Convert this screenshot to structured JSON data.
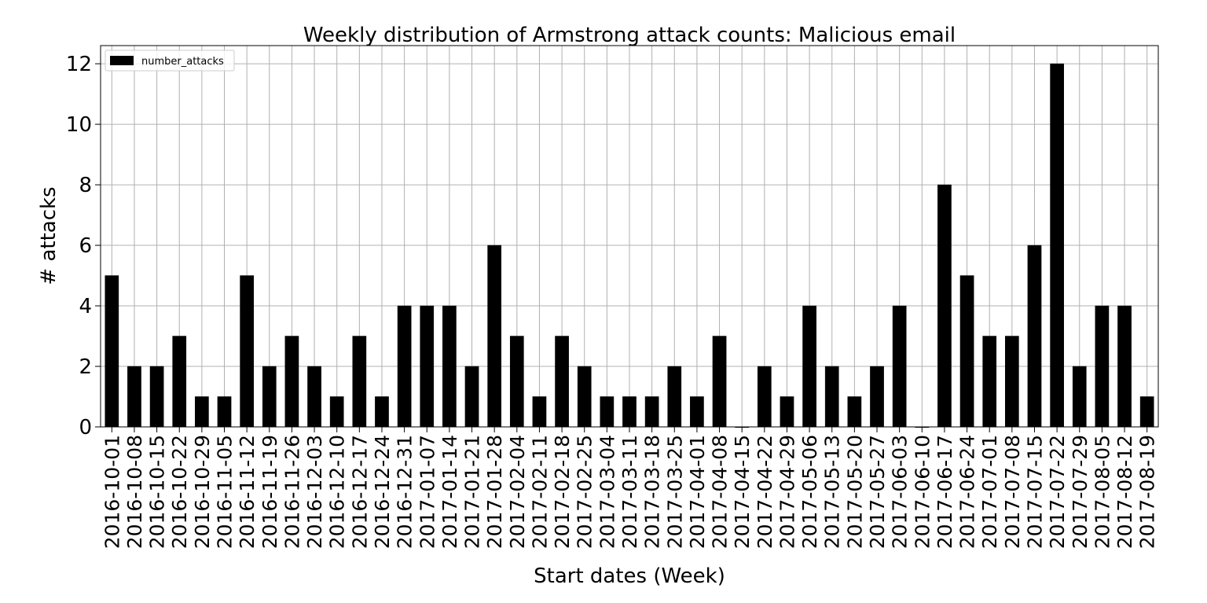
{
  "chart_data": {
    "type": "bar",
    "title": "Weekly distribution of Armstrong attack counts: Malicious email",
    "xlabel": "Start dates (Week)",
    "ylabel": "# attacks",
    "ylim": [
      0,
      12.6
    ],
    "yticks": [
      0,
      2,
      4,
      6,
      8,
      10,
      12
    ],
    "grid": true,
    "legend_position": "top-left",
    "bar_color": "#000000",
    "grid_color": "#b0b0b0",
    "categories": [
      "2016-10-01",
      "2016-10-08",
      "2016-10-15",
      "2016-10-22",
      "2016-10-29",
      "2016-11-05",
      "2016-11-12",
      "2016-11-19",
      "2016-11-26",
      "2016-12-03",
      "2016-12-10",
      "2016-12-17",
      "2016-12-24",
      "2016-12-31",
      "2017-01-07",
      "2017-01-14",
      "2017-01-21",
      "2017-01-28",
      "2017-02-04",
      "2017-02-11",
      "2017-02-18",
      "2017-02-25",
      "2017-03-04",
      "2017-03-11",
      "2017-03-18",
      "2017-03-25",
      "2017-04-01",
      "2017-04-08",
      "2017-04-15",
      "2017-04-22",
      "2017-04-29",
      "2017-05-06",
      "2017-05-13",
      "2017-05-20",
      "2017-05-27",
      "2017-06-03",
      "2017-06-10",
      "2017-06-17",
      "2017-06-24",
      "2017-07-01",
      "2017-07-08",
      "2017-07-15",
      "2017-07-22",
      "2017-07-29",
      "2017-08-05",
      "2017-08-12",
      "2017-08-19"
    ],
    "series": [
      {
        "name": "number_attacks",
        "values": [
          5,
          2,
          2,
          3,
          1,
          1,
          5,
          2,
          3,
          2,
          1,
          3,
          1,
          4,
          4,
          4,
          2,
          6,
          3,
          1,
          3,
          2,
          1,
          1,
          1,
          2,
          1,
          3,
          0,
          2,
          1,
          4,
          2,
          1,
          2,
          4,
          0,
          8,
          5,
          3,
          3,
          6,
          12,
          2,
          4,
          4,
          1
        ]
      }
    ]
  }
}
